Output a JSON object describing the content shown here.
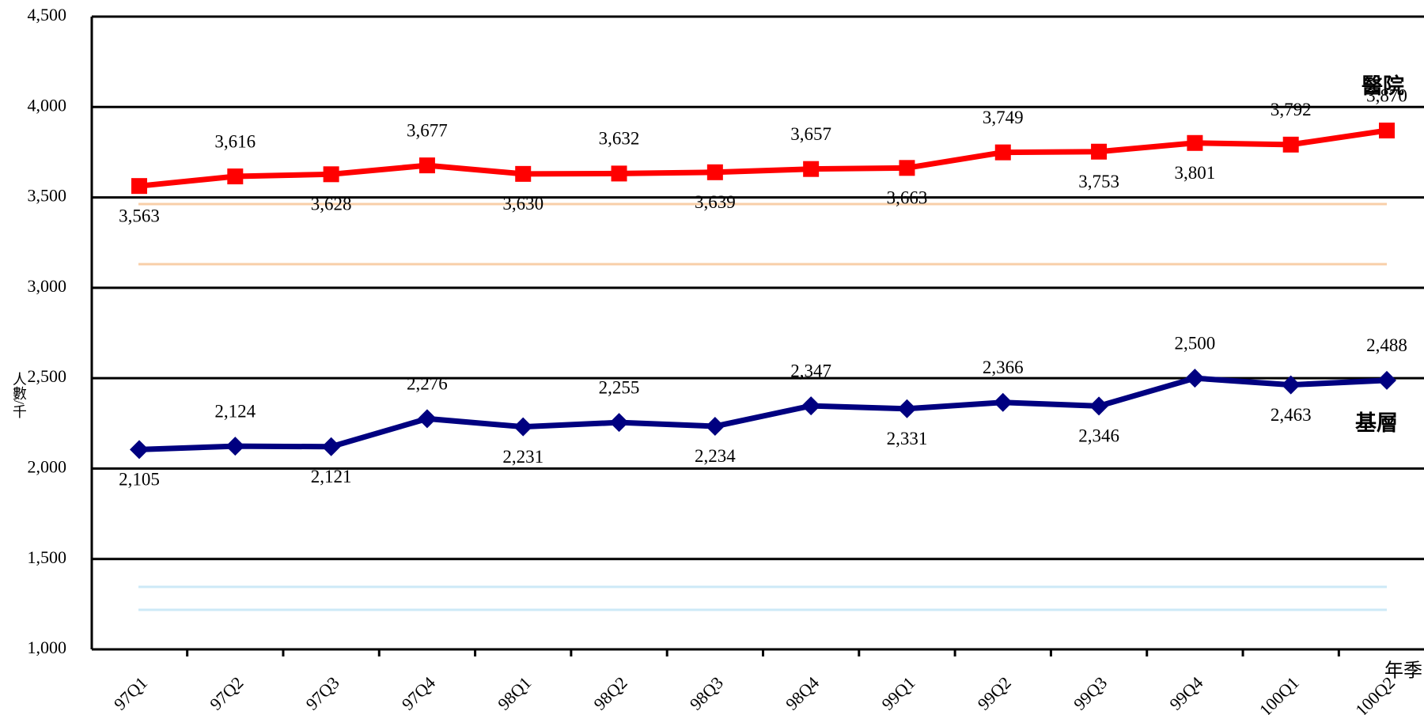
{
  "chart_data": {
    "type": "line",
    "categories": [
      "97Q1",
      "97Q2",
      "97Q3",
      "97Q4",
      "98Q1",
      "98Q2",
      "98Q3",
      "98Q4",
      "99Q1",
      "99Q2",
      "99Q3",
      "99Q4",
      "100Q1",
      "100Q2"
    ],
    "series": [
      {
        "name": "醫院",
        "color": "#ff0000",
        "marker": "square",
        "values": [
          3563,
          3616,
          3628,
          3677,
          3630,
          3632,
          3639,
          3657,
          3663,
          3749,
          3753,
          3801,
          3792,
          3870
        ],
        "value_labels": [
          "3,563",
          "3,616",
          "3,628",
          "3,677",
          "3,630",
          "3,632",
          "3,639",
          "3,657",
          "3,663",
          "3,749",
          "3,753",
          "3,801",
          "3,792",
          "3,870"
        ]
      },
      {
        "name": "基層",
        "color": "#000080",
        "marker": "diamond",
        "values": [
          2105,
          2124,
          2121,
          2276,
          2231,
          2255,
          2234,
          2347,
          2331,
          2366,
          2346,
          2500,
          2463,
          2488
        ],
        "value_labels": [
          "2,105",
          "2,124",
          "2,121",
          "2,276",
          "2,231",
          "2,255",
          "2,234",
          "2,347",
          "2,331",
          "2,366",
          "2,346",
          "2,500",
          "2,463",
          "2,488"
        ]
      }
    ],
    "ylabel": "人數/千",
    "xlabel": "年季",
    "ylim": [
      1000,
      4500
    ],
    "yticks": [
      {
        "value": 1000,
        "label": "1,000"
      },
      {
        "value": 1500,
        "label": "1,500"
      },
      {
        "value": 2000,
        "label": "2,000"
      },
      {
        "value": 2500,
        "label": "2,500"
      },
      {
        "value": 3000,
        "label": "3,000"
      },
      {
        "value": 3500,
        "label": "3,500"
      },
      {
        "value": 4000,
        "label": "4,000"
      },
      {
        "value": 4500,
        "label": "4,500"
      }
    ],
    "grid": true
  }
}
